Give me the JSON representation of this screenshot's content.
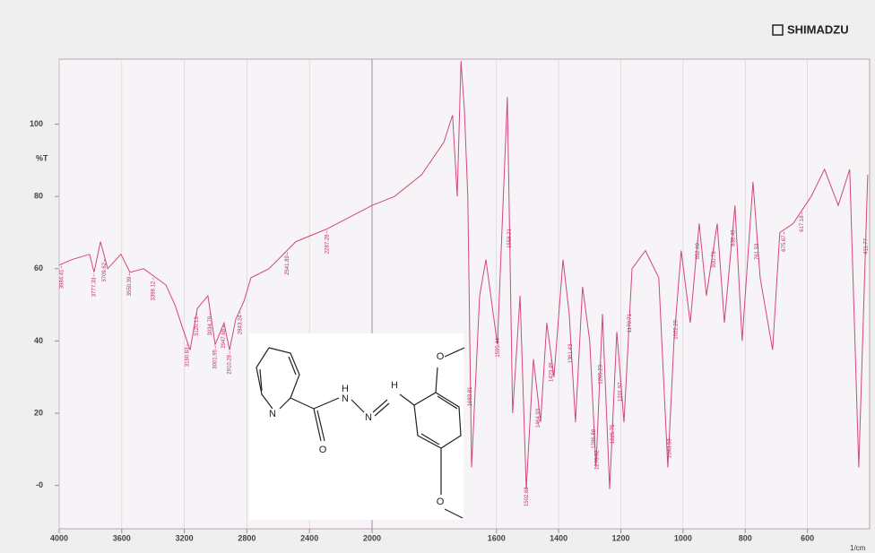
{
  "brand": "SHIMADZU",
  "inset_atoms": [
    "N",
    "O",
    "H",
    "N",
    "N",
    "H",
    "O",
    "O"
  ],
  "chart_data": {
    "type": "line",
    "ylabel": "%T",
    "xlabel": "1/cm",
    "color": "#d2487a",
    "grid": true,
    "xlim": [
      4000,
      400
    ],
    "xbreak": 2000,
    "ylim": [
      -12,
      118
    ],
    "xticks": [
      4000,
      3600,
      3200,
      2800,
      2400,
      2000,
      1600,
      1400,
      1200,
      1000,
      800,
      600
    ],
    "yticks": [
      100,
      80,
      60,
      40,
      20,
      {
        "value": 0,
        "label": "-0"
      }
    ],
    "x": [
      4000,
      3920,
      3805,
      3777,
      3736,
      3690,
      3605,
      3547,
      3461,
      3318,
      3260,
      3203,
      3163,
      3117,
      3049,
      3003,
      2946,
      2911,
      2871,
      2819,
      2774,
      2659,
      2487,
      2287,
      2000,
      1928,
      1841,
      1769,
      1741,
      1726,
      1714,
      1703,
      1692,
      1680,
      1654,
      1634,
      1597,
      1565,
      1548,
      1524,
      1504,
      1481,
      1458,
      1438,
      1415,
      1386,
      1366,
      1346,
      1323,
      1300,
      1280,
      1259,
      1236,
      1213,
      1190,
      1164,
      1121,
      1078,
      1049,
      1029,
      1006,
      977,
      948,
      925,
      890,
      867,
      833,
      810,
      775,
      752,
      712,
      689,
      646,
      588,
      545,
      501,
      464,
      435,
      406
    ],
    "values": [
      61,
      62.5,
      64,
      59,
      67.5,
      60,
      64,
      59,
      60,
      55.5,
      50,
      42.5,
      37.5,
      49,
      52.5,
      39,
      45,
      37.5,
      46,
      51,
      57.5,
      60,
      67.5,
      71,
      77.5,
      80,
      86,
      95,
      102.5,
      80,
      117.5,
      104,
      80,
      5,
      52.5,
      62.5,
      39,
      107.5,
      20,
      52.5,
      -1,
      35,
      17.5,
      45,
      30,
      62.5,
      47.5,
      17.5,
      55,
      40,
      5,
      47.5,
      -1,
      42.5,
      17.5,
      60,
      65,
      57.5,
      5,
      40,
      65,
      45,
      72.5,
      52.5,
      72.5,
      45,
      77.5,
      40,
      84,
      57.5,
      37.5,
      70,
      72.5,
      80,
      87.5,
      77.5,
      87.5,
      5,
      86
    ],
    "peaks": [
      3984.41,
      3777.33,
      3709.62,
      3550.39,
      3398.12,
      3180.83,
      3120.13,
      3034.79,
      3001.95,
      2947.68,
      2910.28,
      2843.24,
      2541.89,
      2287.28,
      1683.81,
      1595.44,
      1558.21,
      1502.68,
      1464.93,
      1423.49,
      1361.43,
      1286.88,
      1276.92,
      1265.23,
      1225.75,
      1201.57,
      1170.71,
      1043.59,
      1022.29,
      952.09,
      900.78,
      838.49,
      761.53,
      675.67,
      617.18,
      411.77
    ]
  }
}
